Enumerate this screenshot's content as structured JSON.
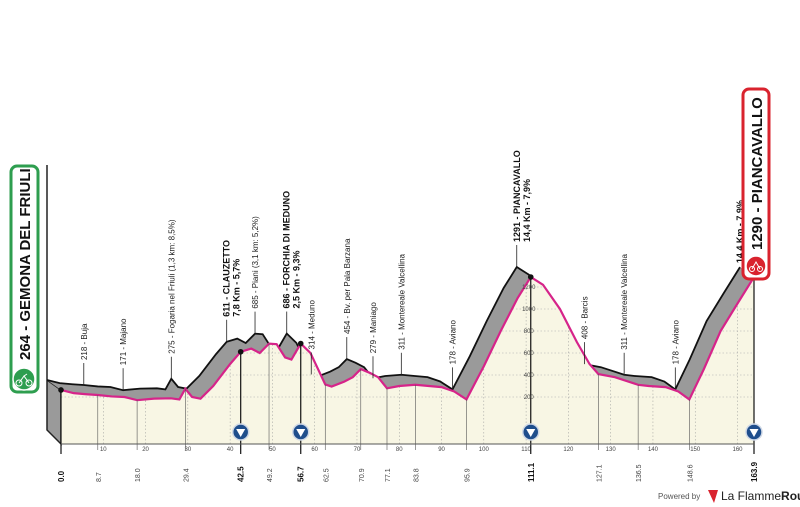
{
  "chart_data": {
    "type": "area",
    "title": "",
    "xlabel": "",
    "ylabel": "",
    "xlim": [
      0,
      163.9
    ],
    "ylim": [
      0,
      1300
    ],
    "grid": true,
    "profile": [
      [
        0,
        264
      ],
      [
        3,
        235
      ],
      [
        6,
        225
      ],
      [
        8.7,
        218
      ],
      [
        12,
        205
      ],
      [
        15,
        200
      ],
      [
        18,
        171
      ],
      [
        22,
        185
      ],
      [
        26,
        188
      ],
      [
        28,
        178
      ],
      [
        29.4,
        275
      ],
      [
        31,
        200
      ],
      [
        33,
        185
      ],
      [
        36,
        300
      ],
      [
        40,
        500
      ],
      [
        42.5,
        611
      ],
      [
        45,
        640
      ],
      [
        47,
        600
      ],
      [
        49.2,
        685
      ],
      [
        51,
        680
      ],
      [
        53,
        560
      ],
      [
        54.5,
        540
      ],
      [
        56.7,
        686
      ],
      [
        59,
        600
      ],
      [
        62.5,
        314
      ],
      [
        64,
        295
      ],
      [
        67,
        340
      ],
      [
        69,
        380
      ],
      [
        70.9,
        454
      ],
      [
        73,
        420
      ],
      [
        75,
        380
      ],
      [
        77.1,
        279
      ],
      [
        80,
        300
      ],
      [
        83.8,
        311
      ],
      [
        87,
        300
      ],
      [
        90,
        290
      ],
      [
        93,
        250
      ],
      [
        95.9,
        178
      ],
      [
        100,
        480
      ],
      [
        104,
        800
      ],
      [
        108,
        1100
      ],
      [
        111.1,
        1291
      ],
      [
        114,
        1220
      ],
      [
        118,
        1000
      ],
      [
        122,
        700
      ],
      [
        125,
        500
      ],
      [
        127.1,
        408
      ],
      [
        131,
        380
      ],
      [
        136.5,
        311
      ],
      [
        139,
        300
      ],
      [
        143,
        290
      ],
      [
        146,
        250
      ],
      [
        148.6,
        178
      ],
      [
        152,
        450
      ],
      [
        156,
        800
      ],
      [
        160,
        1050
      ],
      [
        163.9,
        1290
      ]
    ],
    "elevation_ticks": [
      "200",
      "400",
      "600",
      "800",
      "1000",
      "1200"
    ],
    "km_ticks": [
      "10",
      "20",
      "30",
      "40",
      "50",
      "60",
      "70",
      "80",
      "90",
      "100",
      "110",
      "120",
      "130",
      "140",
      "150",
      "160"
    ],
    "points": [
      {
        "km": "0.0",
        "elev": 264,
        "label": "",
        "bold": true
      },
      {
        "km": "8.7",
        "elev": 218,
        "label": "218 - Buja",
        "bold": false
      },
      {
        "km": "18.0",
        "elev": 171,
        "label": "171 - Majano",
        "bold": false
      },
      {
        "km": "29.4",
        "elev": 275,
        "label": "275 - Fogaria nel Friuli (1,3 km: 8,5%)",
        "bold": false
      },
      {
        "km": "42.5",
        "elev": 611,
        "label": "611 - CLAUZETTO",
        "sub": "7,8 Km - 5,7%",
        "bold": true,
        "kom": true
      },
      {
        "km": "49.2",
        "elev": 685,
        "label": "685 - Piani (3,1 km: 5,2%)",
        "bold": false
      },
      {
        "km": "56.7",
        "elev": 686,
        "label": "686 - FORCHIA DI MEDUNO",
        "sub": "2,5 Km - 9,3%",
        "bold": true,
        "kom": true
      },
      {
        "km": "62.5",
        "elev": 314,
        "label": "314 - Meduno",
        "bold": false
      },
      {
        "km": "70.9",
        "elev": 454,
        "label": "454 - Bv. per Pala Barzana",
        "bold": false
      },
      {
        "km": "77.1",
        "elev": 279,
        "label": "279 - Maniago",
        "bold": false
      },
      {
        "km": "83.8",
        "elev": 311,
        "label": "311 - Montereale Valcellina",
        "bold": false
      },
      {
        "km": "95.9",
        "elev": 178,
        "label": "178 - Aviano",
        "bold": false
      },
      {
        "km": "111.1",
        "elev": 1291,
        "label": "1291 - PIANCAVALLO",
        "sub": "14,4 Km - 7,9%",
        "bold": true,
        "kom": true
      },
      {
        "km": "127.1",
        "elev": 408,
        "label": "408 - Barcis",
        "bold": false
      },
      {
        "km": "136.5",
        "elev": 311,
        "label": "311 - Montereale Valcellina",
        "bold": false
      },
      {
        "km": "148.6",
        "elev": 178,
        "label": "178 - Aviano",
        "bold": false
      },
      {
        "km": "163.9",
        "elev": 1290,
        "label": "14,4 Km - 7,9%",
        "bold": true,
        "kom": true
      }
    ]
  },
  "start": {
    "label": "264 - GEMONA DEL FRIULI",
    "color": "#2e9e4f",
    "icon": "cyclist-start-icon"
  },
  "finish": {
    "label": "1290 - PIANCAVALLO",
    "color": "#d9232e",
    "icon": "cyclist-finish-icon"
  },
  "colors": {
    "profile": "#d6248a",
    "fill": "#f8f6e4",
    "shadow": "#9a9a9a",
    "kom": "#1f4e8c"
  },
  "footer": {
    "powered": "Powered by",
    "brand_a": "La Flamme",
    "brand_b": "Rouge"
  }
}
